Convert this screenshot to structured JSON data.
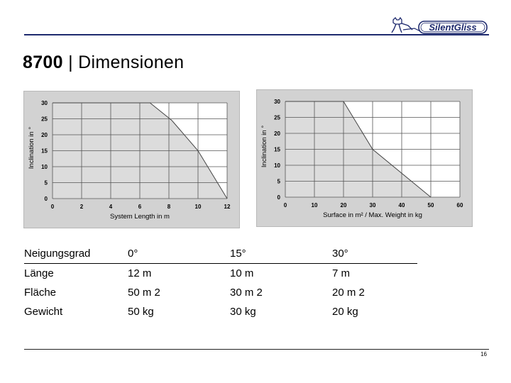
{
  "header": {
    "brand": "SilentGliss",
    "title_bold": "8700",
    "title_rest": " | Dimensionen"
  },
  "chart_data": [
    {
      "type": "area",
      "x": [
        0,
        6.7,
        8.2,
        10,
        12
      ],
      "values": [
        30,
        30,
        24.5,
        15,
        0
      ],
      "xlabel": "System Length in m",
      "ylabel": "Inclination in °",
      "xticks": [
        0,
        2,
        4,
        6,
        8,
        10,
        12
      ],
      "yticks": [
        0,
        5,
        10,
        15,
        20,
        25,
        30
      ],
      "xlim": [
        0,
        12
      ],
      "ylim": [
        0,
        30
      ],
      "grid": true
    },
    {
      "type": "area",
      "x": [
        0,
        20,
        30,
        50
      ],
      "values": [
        30,
        30,
        15,
        0
      ],
      "xlabel": "Surface in m² / Max. Weight in kg",
      "ylabel": "Inclination in °",
      "xticks": [
        0,
        10,
        20,
        30,
        40,
        50,
        60
      ],
      "yticks": [
        0,
        5,
        10,
        15,
        20,
        25,
        30
      ],
      "xlim": [
        0,
        60
      ],
      "ylim": [
        0,
        30
      ],
      "grid": true
    }
  ],
  "table": {
    "header": [
      "Neigungsgrad",
      "0°",
      "15°",
      "30°"
    ],
    "rows": [
      [
        "Länge",
        "12 m",
        "10 m",
        "7 m"
      ],
      [
        "Fläche",
        "50 m 2",
        "30 m 2",
        "20 m 2"
      ],
      [
        "Gewicht",
        "50 kg",
        "30 kg",
        "20 kg"
      ]
    ]
  },
  "footer": {
    "page_number": "16"
  },
  "colors": {
    "rule": "#1e2a6e",
    "chart_bg": "#d2d2d2",
    "plot_bg": "#ffffff",
    "fill": "#dcdcdc",
    "grid": "#555555"
  }
}
